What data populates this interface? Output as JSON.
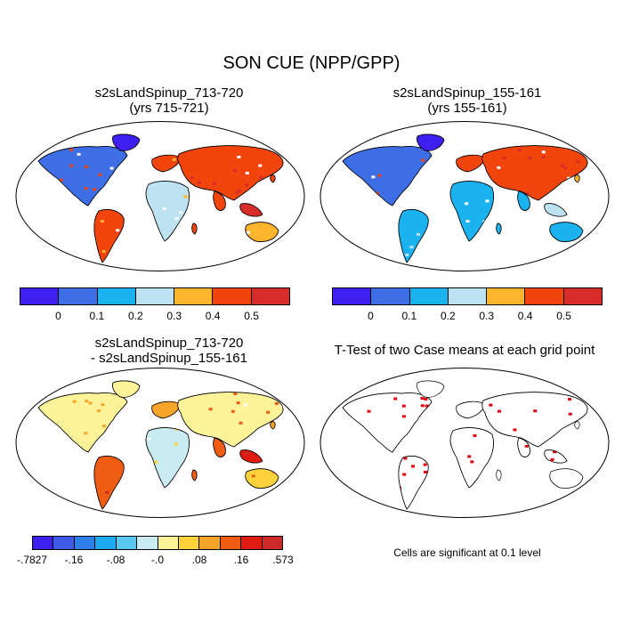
{
  "title": "SON CUE (NPP/GPP)",
  "panels": [
    {
      "id": "case1",
      "title_line1": "s2sLandSpinup_713-720",
      "title_line2": "(yrs 715-721)",
      "palette": "cue"
    },
    {
      "id": "case2",
      "title_line1": "s2sLandSpinup_155-161",
      "title_line2": "(yrs 155-161)",
      "palette": "cue"
    },
    {
      "id": "diff",
      "title_line1": "s2sLandSpinup_713-720",
      "title_line2": "- s2sLandSpinup_155-161",
      "palette": "diff"
    },
    {
      "id": "ttest",
      "title_line1": "T-Test of two Case means at each grid point",
      "title_line2": "",
      "palette": "ttest"
    }
  ],
  "colorbars": {
    "cue": {
      "colors": [
        "#3f1ff0",
        "#3d6ee6",
        "#1ab2ef",
        "#bde3f2",
        "#ffb52e",
        "#f2440d",
        "#d62d2a"
      ],
      "tick_labels": [
        "0",
        "0.1",
        "0.2",
        "0.3",
        "0.4",
        "0.5"
      ]
    },
    "diff": {
      "colors": [
        "#3f1ff0",
        "#3d5be6",
        "#2f7fe8",
        "#1ea9f0",
        "#59c9f0",
        "#c9ebf2",
        "#fff39a",
        "#ffd13a",
        "#f6a52a",
        "#ef5c14",
        "#e01b10",
        "#cf2a2a"
      ],
      "tick_labels": [
        "-.7827",
        "-.16",
        "-.08",
        "-.0",
        ".08",
        ".16",
        ".573"
      ]
    }
  },
  "ttest_note": "Cells are significant at 0.1 level",
  "ttest_color": "#e3000f"
}
